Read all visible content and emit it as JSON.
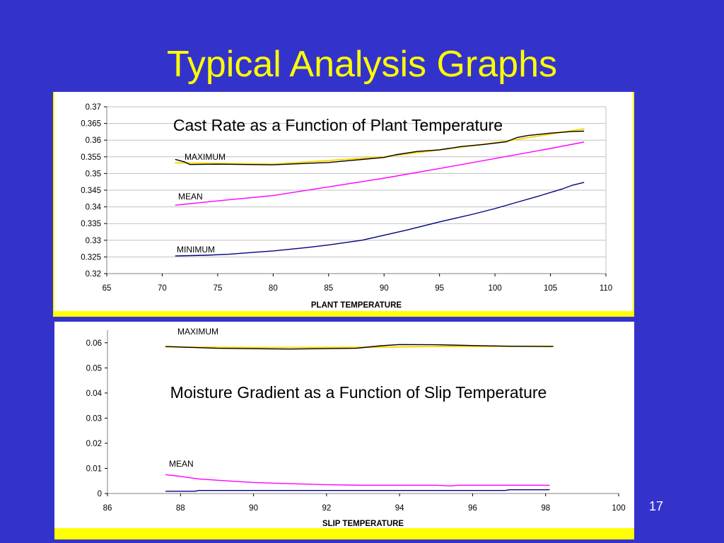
{
  "slide": {
    "title": "Typical Analysis Graphs",
    "page_number": "17"
  },
  "colors": {
    "background": "#3333cc",
    "title": "#ffff00",
    "panel": "#ffff00",
    "plot_area": "#ffffff",
    "maximum": "#000000",
    "maximum_trend": "#ffd700",
    "mean": "#ff00ff",
    "minimum": "#000080"
  },
  "chart_data": [
    {
      "type": "line",
      "title": "Cast Rate as a Function of Plant Temperature",
      "xlabel": "PLANT TEMPERATURE",
      "ylabel": "",
      "xlim": [
        65,
        110
      ],
      "ylim": [
        0.32,
        0.37
      ],
      "xticks": [
        "65",
        "70",
        "75",
        "80",
        "85",
        "90",
        "95",
        "100",
        "105",
        "110"
      ],
      "yticks": [
        "0.32",
        "0.325",
        "0.33",
        "0.335",
        "0.34",
        "0.345",
        "0.35",
        "0.355",
        "0.36",
        "0.365",
        "0.37"
      ],
      "grid": "horizontal",
      "annotations": [
        "MAXIMUM",
        "MEAN",
        "MINIMUM"
      ],
      "series": [
        {
          "name": "MAXIMUM",
          "color": "#000000",
          "x": [
            71.2,
            72.0,
            72.5,
            75,
            80,
            85,
            90,
            91,
            93,
            95,
            97,
            99,
            101,
            102,
            103,
            105,
            107,
            108
          ],
          "y": [
            0.3542,
            0.3535,
            0.3527,
            0.3528,
            0.3526,
            0.3533,
            0.3548,
            0.3556,
            0.3566,
            0.3571,
            0.3581,
            0.3587,
            0.3595,
            0.3608,
            0.3614,
            0.3621,
            0.3626,
            0.3627
          ]
        },
        {
          "name": "MAXIMUM trend",
          "color": "#ffd700",
          "x": [
            71.2,
            80,
            90,
            100,
            108
          ],
          "y": [
            0.3532,
            0.3528,
            0.355,
            0.3592,
            0.3634
          ]
        },
        {
          "name": "MEAN",
          "color": "#ff00ff",
          "x": [
            71.2,
            75,
            80,
            85,
            90,
            95,
            100,
            105,
            108
          ],
          "y": [
            0.3405,
            0.3418,
            0.3434,
            0.346,
            0.3486,
            0.3515,
            0.3545,
            0.3575,
            0.3594
          ]
        },
        {
          "name": "MINIMUM",
          "color": "#000080",
          "x": [
            71.2,
            74,
            76,
            80,
            83,
            85,
            88,
            90,
            92,
            95,
            98,
            100,
            102,
            104,
            106,
            107,
            108
          ],
          "y": [
            0.3253,
            0.3255,
            0.3258,
            0.3268,
            0.3278,
            0.3286,
            0.33,
            0.3315,
            0.333,
            0.3355,
            0.3378,
            0.3395,
            0.3414,
            0.3433,
            0.3453,
            0.3465,
            0.3473
          ]
        }
      ]
    },
    {
      "type": "line",
      "title": "Moisture Gradient as a Function of Slip Temperature",
      "xlabel": "SLIP TEMPERATURE",
      "ylabel": "",
      "xlim": [
        86,
        100
      ],
      "ylim": [
        0,
        0.065
      ],
      "xticks": [
        "86",
        "88",
        "90",
        "92",
        "94",
        "96",
        "98",
        "100"
      ],
      "yticks": [
        "0",
        "0.01",
        "0.02",
        "0.03",
        "0.04",
        "0.05",
        "0.06"
      ],
      "grid": "none",
      "annotations": [
        "MAXIMUM",
        "MEAN"
      ],
      "series": [
        {
          "name": "MAXIMUM",
          "color": "#000000",
          "x": [
            87.6,
            89,
            91,
            92.8,
            93.5,
            94,
            95,
            96,
            97,
            98.2
          ],
          "y": [
            0.0585,
            0.0578,
            0.0575,
            0.0578,
            0.0588,
            0.0593,
            0.0592,
            0.0589,
            0.0586,
            0.0585
          ]
        },
        {
          "name": "MAXIMUM trend",
          "color": "#ffd700",
          "x": [
            87.6,
            90,
            93,
            95,
            98.2
          ],
          "y": [
            0.0583,
            0.0581,
            0.0582,
            0.0585,
            0.0586
          ]
        },
        {
          "name": "MEAN",
          "color": "#ff00ff",
          "x": [
            87.6,
            88,
            88.5,
            89,
            90,
            91,
            92,
            93,
            95,
            95.4,
            95.6,
            98.1
          ],
          "y": [
            0.0075,
            0.0068,
            0.0058,
            0.0053,
            0.0044,
            0.0039,
            0.0035,
            0.0033,
            0.0033,
            0.003,
            0.0033,
            0.0033
          ]
        },
        {
          "name": "MINIMUM",
          "color": "#000080",
          "x": [
            87.6,
            88.4,
            88.5,
            96.9,
            97.0,
            98.1
          ],
          "y": [
            0.0009,
            0.0009,
            0.0012,
            0.0012,
            0.0015,
            0.0015
          ]
        }
      ]
    }
  ]
}
